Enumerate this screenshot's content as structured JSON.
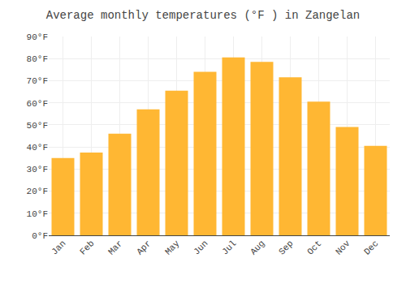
{
  "chart_data": {
    "type": "bar",
    "title": "Average monthly temperatures (°F ) in Zangelan",
    "categories": [
      "Jan",
      "Feb",
      "Mar",
      "Apr",
      "May",
      "Jun",
      "Jul",
      "Aug",
      "Sep",
      "Oct",
      "Nov",
      "Dec"
    ],
    "values": [
      35,
      37.5,
      46,
      57,
      65.5,
      74,
      80.5,
      78.5,
      71.5,
      60.5,
      49,
      40.5
    ],
    "color": "#FFB733",
    "ylim": [
      0,
      90
    ],
    "yticks": [
      {
        "value": 0,
        "label": "0°F"
      },
      {
        "value": 10,
        "label": "10°F"
      },
      {
        "value": 20,
        "label": "20°F"
      },
      {
        "value": 30,
        "label": "30°F"
      },
      {
        "value": 40,
        "label": "40°F"
      },
      {
        "value": 50,
        "label": "50°F"
      },
      {
        "value": 60,
        "label": "60°F"
      },
      {
        "value": 70,
        "label": "70°F"
      },
      {
        "value": 80,
        "label": "80°F"
      },
      {
        "value": 90,
        "label": "90°F"
      }
    ],
    "grid": true
  }
}
